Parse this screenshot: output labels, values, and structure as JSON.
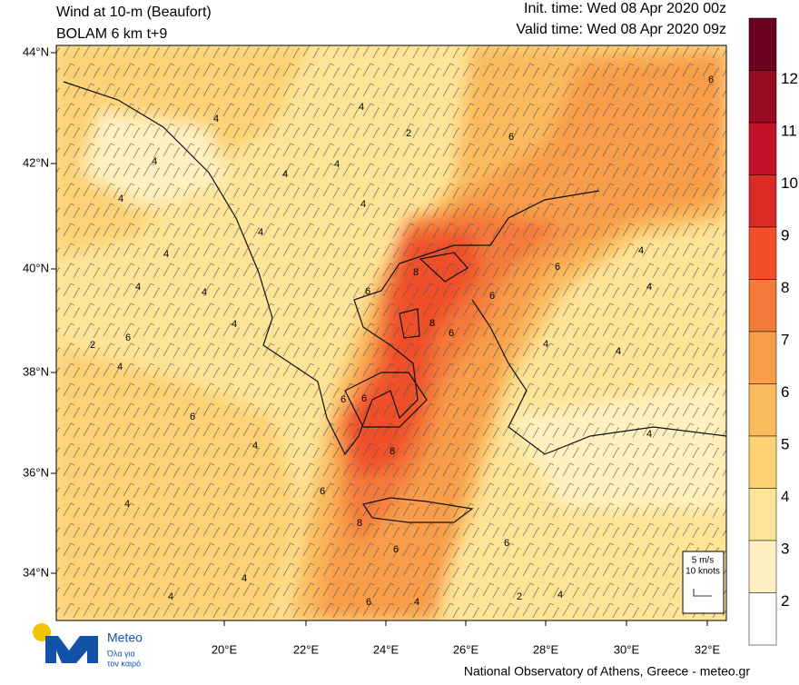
{
  "header": {
    "title": "Wind at 10-m (Beaufort)",
    "subtitle": "BOLAM 6 km t+9",
    "init_time": "Init. time: Wed 08 Apr 2020 00z",
    "valid_time": "Valid time: Wed 08 Apr 2020 09z"
  },
  "map": {
    "lat_labels": [
      "44°N",
      "42°N",
      "40°N",
      "38°N",
      "36°N",
      "34°N"
    ],
    "lon_labels": [
      "20°E",
      "22°E",
      "24°E",
      "26°E",
      "28°E",
      "30°E",
      "32°E"
    ],
    "contour_labels": [
      4,
      4,
      2,
      6,
      6,
      4,
      4,
      4,
      4,
      4,
      4,
      4,
      6,
      4,
      4,
      4,
      8,
      6,
      6,
      8,
      6,
      4,
      4,
      2,
      6,
      4,
      4,
      4,
      6,
      6,
      8,
      6,
      4,
      4,
      6,
      4,
      8,
      6,
      6,
      4,
      4,
      6,
      4,
      2,
      4
    ]
  },
  "colorbar": {
    "labels": [
      12,
      11,
      10,
      9,
      8,
      7,
      6,
      5,
      4,
      3,
      2
    ],
    "colors": [
      "#6b0020",
      "#990b22",
      "#c2122a",
      "#dd2b24",
      "#f04f2a",
      "#f47a3a",
      "#f89d4a",
      "#fbba5d",
      "#fdd174",
      "#fee497",
      "#fff1bf",
      "#ffffff"
    ]
  },
  "barb_legend": {
    "speed": "5 m/s",
    "knots": "10 knots"
  },
  "logo": {
    "name": "Meteo",
    "slogan_line1": "Όλα για",
    "slogan_line2": "τον καιρό"
  },
  "footer": "National Observatory of Athens, Greece - meteo.gr"
}
